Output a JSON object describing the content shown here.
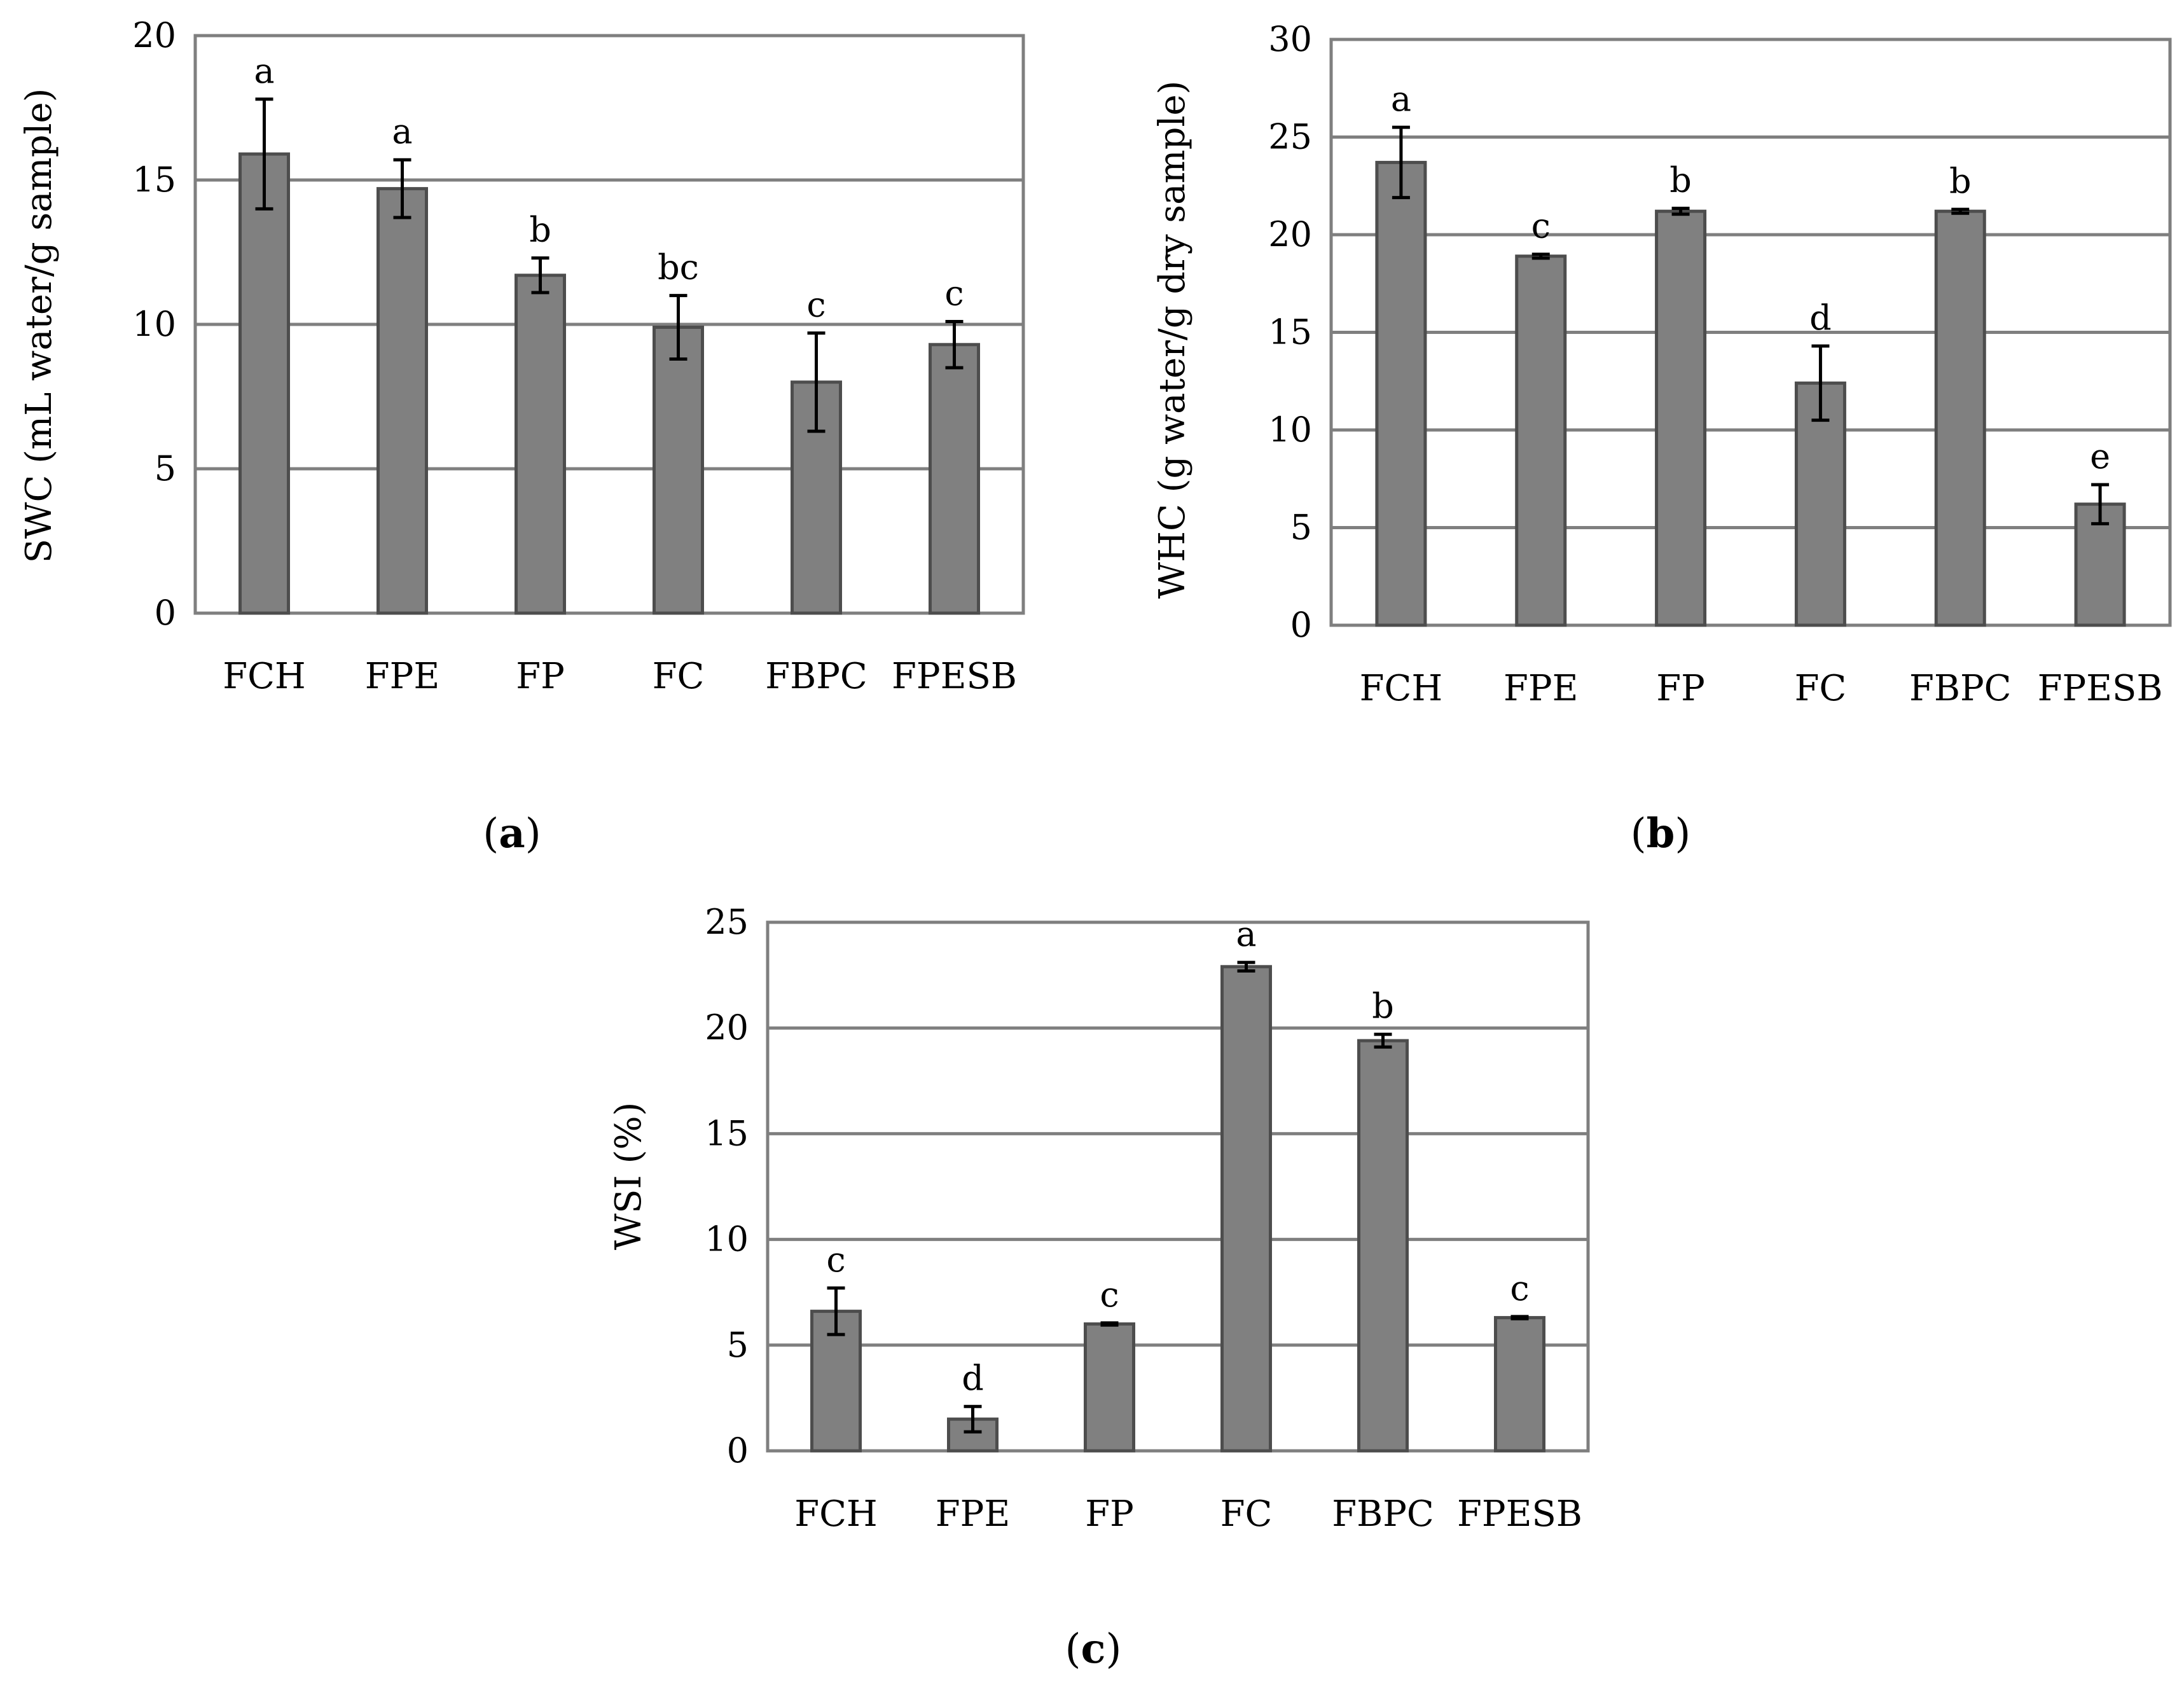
{
  "chart_data": [
    {
      "panel": "a",
      "type": "bar",
      "title": "",
      "xlabel": "",
      "ylabel": "SWC (mL water/g sample)",
      "ylim": [
        0,
        20
      ],
      "yticks": [
        0,
        5,
        10,
        15,
        20
      ],
      "grid": true,
      "categories": [
        "FCH",
        "FPE",
        "FP",
        "FC",
        "FBPC",
        "FPESB"
      ],
      "values": [
        15.9,
        14.7,
        11.7,
        9.9,
        8.0,
        9.3
      ],
      "errors": [
        1.9,
        1.0,
        0.6,
        1.1,
        1.7,
        0.8
      ],
      "significance": [
        "a",
        "a",
        "b",
        "bc",
        "c",
        "c"
      ],
      "caption_open": "(",
      "caption_letter": "a",
      "caption_close": ")"
    },
    {
      "panel": "b",
      "type": "bar",
      "title": "",
      "xlabel": "",
      "ylabel": "WHC (g water/g dry sample)",
      "ylim": [
        0,
        30
      ],
      "yticks": [
        0,
        5,
        10,
        15,
        20,
        25,
        30
      ],
      "grid": true,
      "categories": [
        "FCH",
        "FPE",
        "FP",
        "FC",
        "FBPC",
        "FPESB"
      ],
      "values": [
        23.7,
        18.9,
        21.2,
        12.4,
        21.2,
        6.2
      ],
      "errors": [
        1.8,
        0.1,
        0.15,
        1.9,
        0.1,
        1.0
      ],
      "significance": [
        "a",
        "c",
        "b",
        "d",
        "b",
        "e"
      ],
      "caption_open": "(",
      "caption_letter": "b",
      "caption_close": ")"
    },
    {
      "panel": "c",
      "type": "bar",
      "title": "",
      "xlabel": "",
      "ylabel": "WSI (%)",
      "ylim": [
        0,
        25
      ],
      "yticks": [
        0,
        5,
        10,
        15,
        20,
        25
      ],
      "grid": true,
      "categories": [
        "FCH",
        "FPE",
        "FP",
        "FC",
        "FBPC",
        "FPESB"
      ],
      "values": [
        6.6,
        1.5,
        6.0,
        22.9,
        19.4,
        6.3
      ],
      "errors": [
        1.1,
        0.6,
        0.05,
        0.2,
        0.3,
        0.05
      ],
      "significance": [
        "c",
        "d",
        "c",
        "a",
        "b",
        "c"
      ],
      "caption_open": "(",
      "caption_letter": "c",
      "caption_close": ")"
    }
  ],
  "colors": {
    "bar_fill": "#808080",
    "bar_stroke": "#4d4d4d",
    "grid": "#7f7f7f",
    "error_bar": "#000000",
    "text": "#000000"
  }
}
